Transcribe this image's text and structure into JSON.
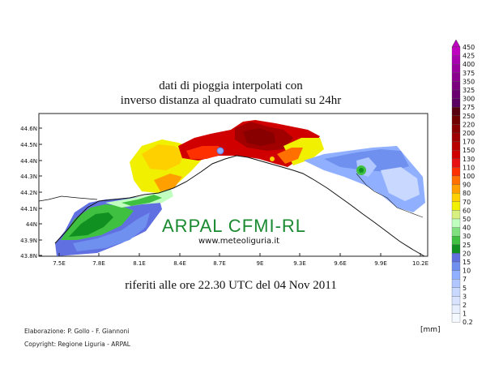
{
  "title_line1": "dati di pioggia interpolati con",
  "title_line2": "inverso distanza al quadrato cumulati su 24hr",
  "subtitle": "riferiti alle ore 22.30 UTC del 04 Nov 2011",
  "brand": "ARPAL CFMI-RL",
  "website": "www.meteoliguria.it",
  "credit_line1": "Elaborazione: P. Gollo - F. Giannoni",
  "credit_line2": "Copyright: Regione Liguria - ARPAL",
  "unit_label": "[mm]",
  "lat_ticks": [
    "44.6N",
    "44.5N",
    "44.4N",
    "44.3N",
    "44.2N",
    "44.1N",
    "44N",
    "43.9N",
    "43.8N"
  ],
  "lon_ticks": [
    "7.5E",
    "7.8E",
    "8.1E",
    "8.4E",
    "8.7E",
    "9E",
    "9.3E",
    "9.6E",
    "9.9E",
    "10.2E"
  ],
  "legend": {
    "levels": [
      "450",
      "425",
      "400",
      "375",
      "350",
      "325",
      "300",
      "275",
      "250",
      "220",
      "200",
      "170",
      "150",
      "130",
      "110",
      "100",
      "90",
      "80",
      "70",
      "60",
      "50",
      "40",
      "30",
      "25",
      "20",
      "15",
      "10",
      "7",
      "5",
      "3",
      "2",
      "1",
      "0.2"
    ],
    "colors": [
      "#c000c0",
      "#a800b0",
      "#9a00a0",
      "#8c0090",
      "#7a0080",
      "#6a0070",
      "#5a0060",
      "#560010",
      "#700000",
      "#880000",
      "#a00000",
      "#b80000",
      "#d00000",
      "#e81010",
      "#ff3000",
      "#ff7000",
      "#ffa000",
      "#ffd000",
      "#f0f000",
      "#d8f080",
      "#c0ffc0",
      "#80e080",
      "#40c040",
      "#109020",
      "#6070e0",
      "#7090f0",
      "#90b0ff",
      "#b0c8ff",
      "#c8d8ff",
      "#d8e4ff",
      "#e8f0ff",
      "#f4f8ff"
    ]
  }
}
